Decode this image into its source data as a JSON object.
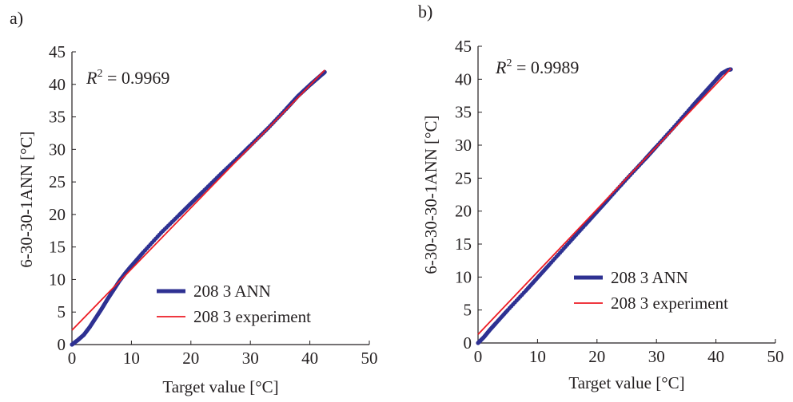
{
  "chart_data": [
    {
      "type": "scatter",
      "panel_label": "a)",
      "annotation": {
        "symbol": "R",
        "superscript": "2",
        "text": " = 0.9969"
      },
      "xlabel": "Target value [°C]",
      "ylabel": "6-30-30-1ANN [°C]",
      "xlim": [
        0,
        50
      ],
      "ylim": [
        0,
        45
      ],
      "xticks": [
        0,
        10,
        20,
        30,
        40,
        50
      ],
      "yticks": [
        0,
        5,
        10,
        15,
        20,
        25,
        30,
        35,
        40,
        45
      ],
      "grid": false,
      "legend_position": "bottom-right",
      "series": [
        {
          "name": "208 3 ANN",
          "kind": "markers",
          "color": "#2e3192",
          "x": [
            0,
            1,
            2,
            3,
            4,
            5,
            6,
            7,
            8,
            9,
            10,
            12,
            15,
            18,
            20,
            22,
            25,
            28,
            30,
            33,
            36,
            38,
            40,
            41,
            42,
            42.5
          ],
          "y": [
            0,
            0.7,
            1.5,
            2.7,
            4.1,
            5.5,
            7.0,
            8.4,
            9.8,
            11.0,
            12.1,
            14.2,
            17.2,
            19.9,
            21.7,
            23.5,
            26.2,
            28.8,
            30.6,
            33.3,
            36.2,
            38.2,
            39.9,
            40.7,
            41.5,
            41.9
          ]
        },
        {
          "name": "208 3 experiment",
          "kind": "line",
          "color": "#ed1c24",
          "x": [
            0,
            42.5
          ],
          "y": [
            2.2,
            42.2
          ]
        }
      ]
    },
    {
      "type": "scatter",
      "panel_label": "b)",
      "annotation": {
        "symbol": "R",
        "superscript": "2",
        "text": " = 0.9989"
      },
      "xlabel": "Target value [°C]",
      "ylabel": "6-30-30-30-1ANN [°C]",
      "xlim": [
        0,
        50
      ],
      "ylim": [
        0,
        45
      ],
      "xticks": [
        0,
        10,
        20,
        30,
        40,
        50
      ],
      "yticks": [
        0,
        5,
        10,
        15,
        20,
        25,
        30,
        35,
        40,
        45
      ],
      "grid": false,
      "legend_position": "bottom-right",
      "series": [
        {
          "name": "208 3 ANN",
          "kind": "markers",
          "color": "#2e3192",
          "x": [
            0,
            1,
            2,
            3,
            5,
            8,
            10,
            12,
            15,
            18,
            20,
            22,
            25,
            28,
            30,
            33,
            36,
            38,
            40,
            41,
            42,
            42.5
          ],
          "y": [
            0,
            0.9,
            2.0,
            3.0,
            5.0,
            7.9,
            9.9,
            11.9,
            14.9,
            17.9,
            19.9,
            21.9,
            24.9,
            27.8,
            29.8,
            32.8,
            35.9,
            37.9,
            39.9,
            40.9,
            41.4,
            41.5
          ]
        },
        {
          "name": "208 3 experiment",
          "kind": "line",
          "color": "#ed1c24",
          "x": [
            0,
            42.5
          ],
          "y": [
            1.3,
            41.6
          ]
        }
      ]
    }
  ]
}
